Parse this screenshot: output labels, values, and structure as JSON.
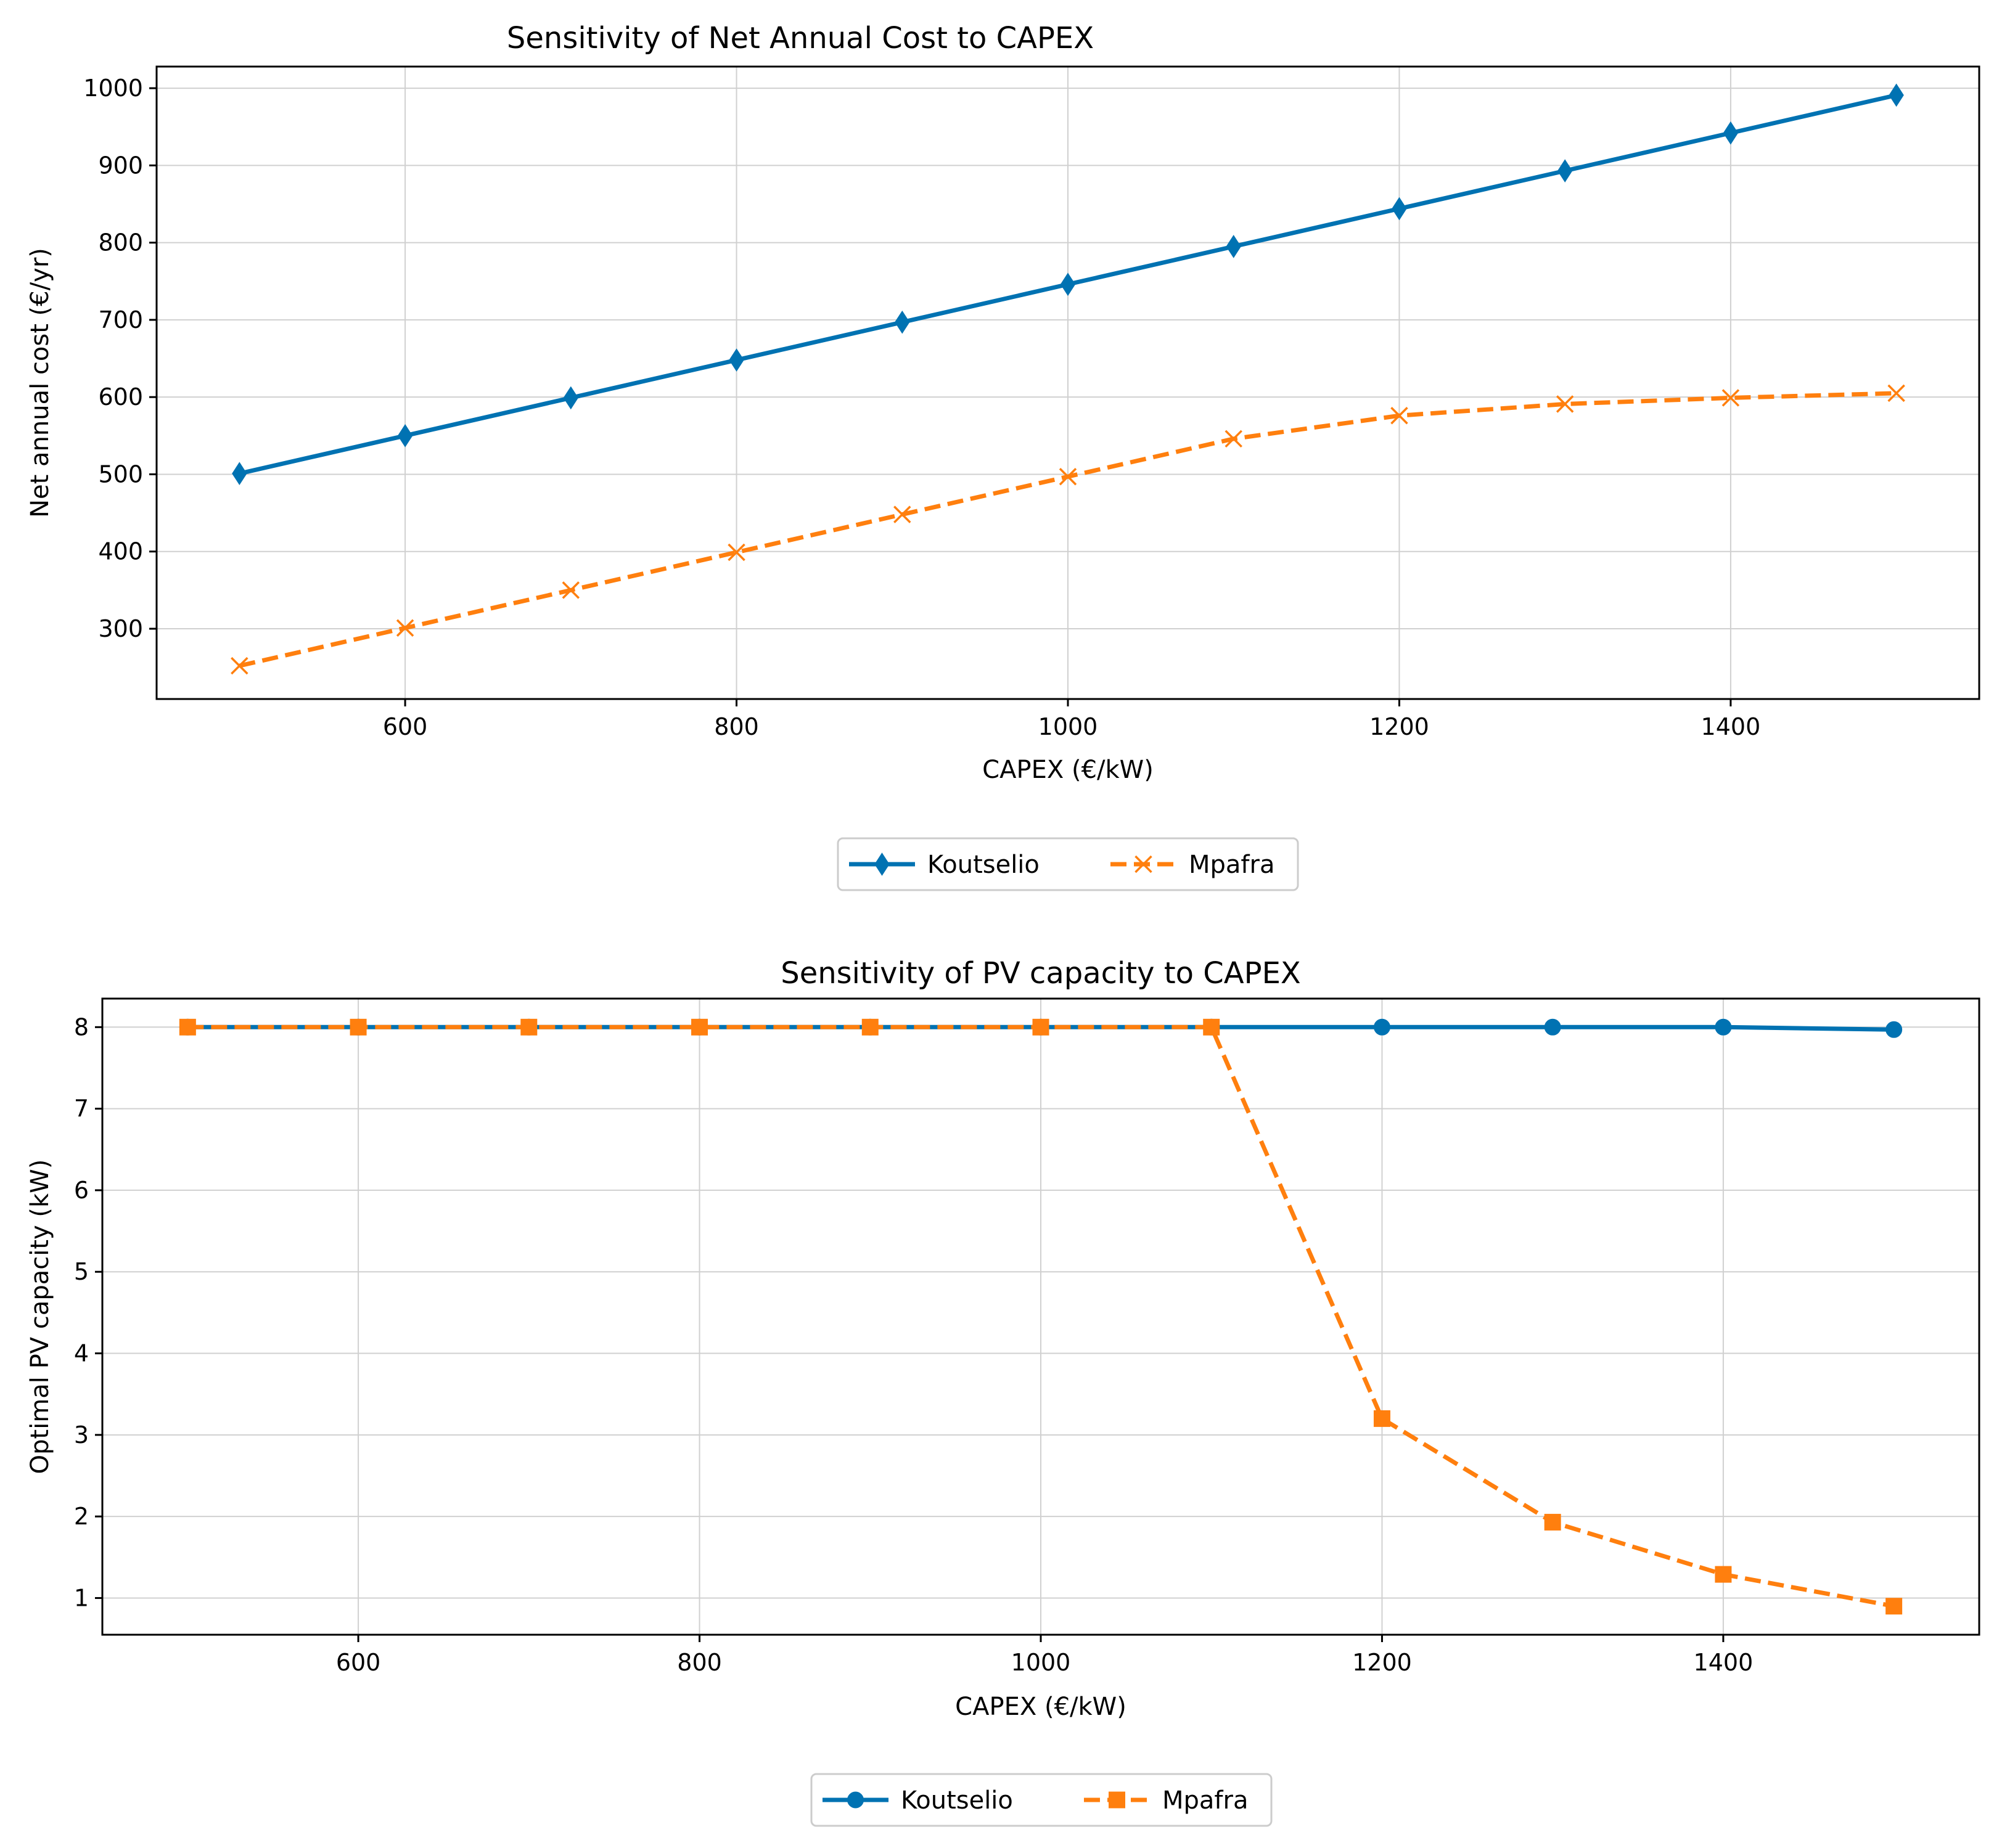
{
  "chart_data": [
    {
      "type": "line",
      "title": "Sensitivity of Net Annual Cost to CAPEX",
      "xlabel": "CAPEX (€/kW)",
      "ylabel": "Net annual cost (€/yr)",
      "x": [
        500,
        600,
        700,
        800,
        900,
        1000,
        1100,
        1200,
        1300,
        1400,
        1500
      ],
      "xlim": [
        450,
        1550
      ],
      "ylim": [
        209,
        1028
      ],
      "xticks": [
        600,
        800,
        1000,
        1200,
        1400
      ],
      "yticks": [
        300,
        400,
        500,
        600,
        700,
        800,
        900,
        1000
      ],
      "grid": true,
      "legend_position": "below",
      "series": [
        {
          "name": "Koutselio",
          "color": "#0072B2",
          "linestyle": "solid",
          "marker": "diamond",
          "values": [
            501,
            550,
            599,
            648,
            697,
            746,
            795,
            844,
            893,
            942,
            991
          ]
        },
        {
          "name": "Mpafra",
          "color": "#FF7F0E",
          "linestyle": "dashed",
          "marker": "x",
          "values": [
            252,
            301,
            350,
            399,
            448,
            497,
            546,
            576,
            591,
            599,
            605
          ]
        }
      ]
    },
    {
      "type": "line",
      "title": "Sensitivity of PV capacity to CAPEX",
      "xlabel": "CAPEX (€/kW)",
      "ylabel": "Optimal PV capacity (kW)",
      "x": [
        500,
        600,
        700,
        800,
        900,
        1000,
        1100,
        1200,
        1300,
        1400,
        1500
      ],
      "xlim": [
        450,
        1550
      ],
      "ylim": [
        0.55,
        8.35
      ],
      "xticks": [
        600,
        800,
        1000,
        1200,
        1400
      ],
      "yticks": [
        1,
        2,
        3,
        4,
        5,
        6,
        7,
        8
      ],
      "grid": true,
      "legend_position": "below",
      "series": [
        {
          "name": "Koutselio",
          "color": "#0072B2",
          "linestyle": "solid",
          "marker": "circle",
          "values": [
            8,
            8,
            8,
            8,
            8,
            8,
            8,
            8,
            8,
            8,
            7.97
          ]
        },
        {
          "name": "Mpafra",
          "color": "#FF7F0E",
          "linestyle": "dashed",
          "marker": "square",
          "values": [
            8,
            8,
            8,
            8,
            8,
            8,
            8,
            3.2,
            1.93,
            1.29,
            0.9
          ]
        }
      ]
    }
  ]
}
